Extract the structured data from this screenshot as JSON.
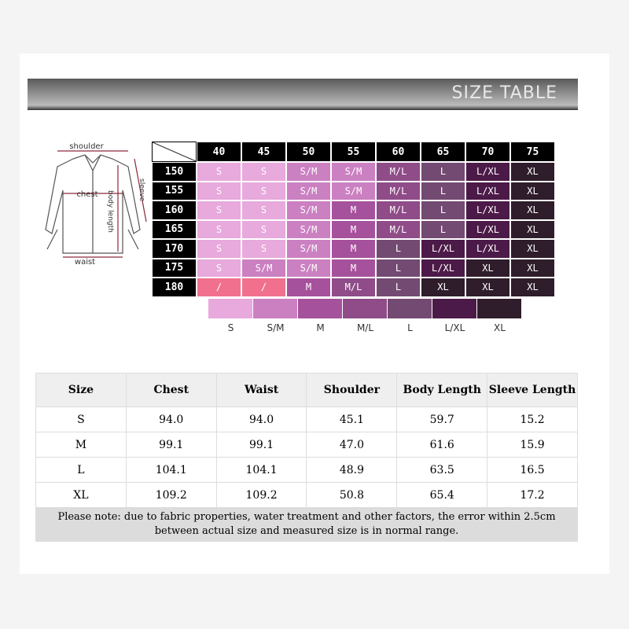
{
  "header": {
    "title": "SIZE TABLE"
  },
  "diagram": {
    "labels": {
      "shoulder": "shoulder",
      "chest": "chest",
      "sleeve": "sleeve",
      "body_length": "body length",
      "waist": "waist"
    }
  },
  "size_grid": {
    "columns": [
      "40",
      "45",
      "50",
      "55",
      "60",
      "65",
      "70",
      "75"
    ],
    "rows": [
      {
        "label": "150",
        "cells": [
          "S",
          "S",
          "S/M",
          "S/M",
          "M/L",
          "L",
          "L/XL",
          "XL"
        ]
      },
      {
        "label": "155",
        "cells": [
          "S",
          "S",
          "S/M",
          "S/M",
          "M/L",
          "L",
          "L/XL",
          "XL"
        ]
      },
      {
        "label": "160",
        "cells": [
          "S",
          "S",
          "S/M",
          "M",
          "M/L",
          "L",
          "L/XL",
          "XL"
        ]
      },
      {
        "label": "165",
        "cells": [
          "S",
          "S",
          "S/M",
          "M",
          "M/L",
          "L",
          "L/XL",
          "XL"
        ]
      },
      {
        "label": "170",
        "cells": [
          "S",
          "S",
          "S/M",
          "M",
          "L",
          "L/XL",
          "L/XL",
          "XL"
        ]
      },
      {
        "label": "175",
        "cells": [
          "S",
          "S/M",
          "S/M",
          "M",
          "L",
          "L/XL",
          "XL",
          "XL"
        ]
      },
      {
        "label": "180",
        "cells": [
          "/",
          "/",
          "M",
          "M/L",
          "L",
          "XL",
          "XL",
          "XL"
        ]
      }
    ],
    "na_color": "#f0708e"
  },
  "legend": [
    {
      "label": "S",
      "color": "#e8a9dc"
    },
    {
      "label": "S/M",
      "color": "#cb80c1"
    },
    {
      "label": "M",
      "color": "#a6519c"
    },
    {
      "label": "M/L",
      "color": "#8f4c88"
    },
    {
      "label": "L",
      "color": "#734a72"
    },
    {
      "label": "L/XL",
      "color": "#4c1a48"
    },
    {
      "label": "XL",
      "color": "#2f1d2b"
    }
  ],
  "table": {
    "header": [
      "Size",
      "Chest",
      "Waist",
      "Shoulder",
      "Body Length",
      "Sleeve Length"
    ],
    "rows": [
      [
        "S",
        "94.0",
        "94.0",
        "45.1",
        "59.7",
        "15.2"
      ],
      [
        "M",
        "99.1",
        "99.1",
        "47.0",
        "61.6",
        "15.9"
      ],
      [
        "L",
        "104.1",
        "104.1",
        "48.9",
        "63.5",
        "16.5"
      ],
      [
        "XL",
        "109.2",
        "109.2",
        "50.8",
        "65.4",
        "17.2"
      ]
    ],
    "note": "Please note: due to fabric properties, water treatment and other factors, the error within 2.5cm between actual size and measured size is in normal range."
  }
}
